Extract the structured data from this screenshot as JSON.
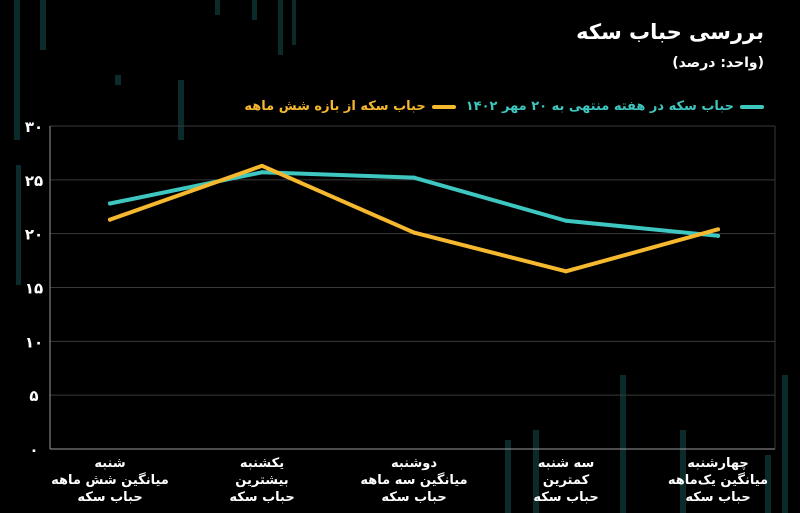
{
  "header": {
    "title": "بررسی حباب سکه",
    "unit": "(واحد: درصد)"
  },
  "colors": {
    "background": "#000000",
    "teal": "#3EC7C0",
    "gold": "#F5B82E",
    "grid": "#3a3a3a"
  },
  "chart_data": {
    "type": "line",
    "categories": [
      [
        "شنبه",
        "میانگین شش ماهه",
        "حباب سکه"
      ],
      [
        "یکشنبه",
        "بیشترین",
        "حباب سکه"
      ],
      [
        "دوشنبه",
        "میانگین سه ماهه",
        "حباب سکه"
      ],
      [
        "سه شنبه",
        "کمترین",
        "حباب سکه"
      ],
      [
        "چهارشنبه",
        "میانگین یک‌ماهه",
        "حباب سکه"
      ]
    ],
    "yticks": [
      "۰",
      "۵",
      "۱۰",
      "۱۵",
      "۲۰",
      "۲۵",
      "۳۰"
    ],
    "ylim": [
      0,
      30
    ],
    "grid": true,
    "legend_position": "top",
    "series": [
      {
        "name": "حباب سکه  در هفته  منتهی به ۲۰ مهر  ۱۴۰۲",
        "color": "#3EC7C0",
        "values": [
          22.8,
          25.7,
          25.2,
          21.2,
          19.8
        ]
      },
      {
        "name": "حباب سکه از بازه شش ماهه",
        "color": "#F5B82E",
        "values": [
          21.3,
          26.3,
          20.1,
          16.5,
          20.4
        ]
      }
    ]
  }
}
